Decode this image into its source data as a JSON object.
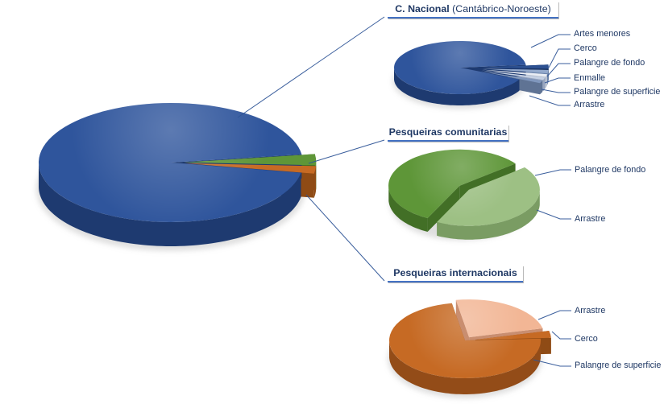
{
  "page": {
    "background": "#ffffff"
  },
  "sections": {
    "nacional": {
      "title_bold": "C. Nacional",
      "title_rest": " (Cantábrico-Noroeste)"
    },
    "comunitarias": {
      "title": "Pesqueiras comunitarias"
    },
    "internacionais": {
      "title": "Pesqueiras internacionais"
    }
  },
  "colors": {
    "title_text": "#1f3864",
    "label_text": "#1f3864",
    "callout_line": "#2f5597",
    "title_underline": "#4472c4"
  },
  "chart_data": [
    {
      "id": "fleet-total",
      "type": "pie",
      "title": "",
      "legend_position": "none",
      "slices": [
        {
          "label": "Pesqueiras comunitarias",
          "value": 3,
          "color": "#5e9638",
          "side": "#426f26"
        },
        {
          "label": "Pesqueiras internacionais",
          "value": 2,
          "color": "#c66a24",
          "side": "#8f4b15"
        },
        {
          "label": "C. Nacional (Cantábrico-Noroeste)",
          "value": 95,
          "color": "#2f559c",
          "side": "#1e3a70"
        }
      ]
    },
    {
      "id": "nacional",
      "type": "pie",
      "title": "C. Nacional (Cantábrico-Noroeste)",
      "legend_position": "right-callouts",
      "slices": [
        {
          "label": "Cerco",
          "value": 2.5,
          "color": "#2d5191",
          "side": "#1c3563"
        },
        {
          "label": "Palangre de fondo",
          "value": 2,
          "color": "#93a9cc",
          "side": "#6f87ad"
        },
        {
          "label": "Enmalle",
          "value": 1.5,
          "color": "#e9edf4",
          "side": "#b9c2d1"
        },
        {
          "label": "Palangre de superficie",
          "value": 1.5,
          "color": "#c6d1e4",
          "side": "#97a5bf"
        },
        {
          "label": "Arrastre",
          "value": 1.5,
          "color": "#8097bd",
          "side": "#5f7394"
        },
        {
          "label": "Artes menores",
          "value": 91,
          "color": "#2f559c",
          "side": "#1e3a70"
        }
      ]
    },
    {
      "id": "comunitarias",
      "type": "pie",
      "title": "Pesqueiras comunitarias",
      "legend_position": "right-callouts",
      "slices": [
        {
          "label": "Arrastre",
          "value": 43,
          "color": "#9dc084",
          "side": "#7a9c63"
        },
        {
          "label": "Palangre de fondo",
          "value": 57,
          "color": "#5e9638",
          "side": "#426f26"
        }
      ]
    },
    {
      "id": "internacionais",
      "type": "pie",
      "title": "Pesqueiras internacionais",
      "legend_position": "right-callouts",
      "slices": [
        {
          "label": "Arrastre",
          "value": 24,
          "color": "#f2b695",
          "side": "#c98e70"
        },
        {
          "label": "Cerco",
          "value": 3,
          "color": "#c66a24",
          "side": "#8f4b15"
        },
        {
          "label": "Palangre de superficie",
          "value": 73,
          "color": "#c66a24",
          "side": "#934c18"
        }
      ]
    }
  ]
}
